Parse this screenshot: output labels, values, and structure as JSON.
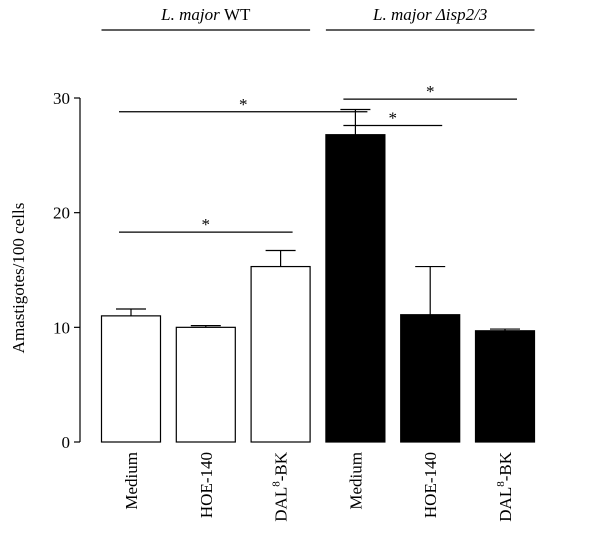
{
  "chart_data": {
    "type": "bar",
    "ylabel": "Amastigotes/100 cells",
    "ylim": [
      0,
      30
    ],
    "yticks": [
      0,
      10,
      20,
      30
    ],
    "grid": false,
    "categories": [
      {
        "main": "Medium",
        "sup": "",
        "suffix": ""
      },
      {
        "main": "HOE-140",
        "sup": "",
        "suffix": ""
      },
      {
        "main": "DAL",
        "sup": "8",
        "suffix": "-BK"
      },
      {
        "main": "Medium",
        "sup": "",
        "suffix": ""
      },
      {
        "main": "HOE-140",
        "sup": "",
        "suffix": ""
      },
      {
        "main": "DAL",
        "sup": "8",
        "suffix": "-BK"
      }
    ],
    "values": [
      11.0,
      10.0,
      15.3,
      26.8,
      11.1,
      9.7
    ],
    "errors": [
      0.6,
      0.15,
      1.4,
      2.2,
      4.2,
      0.15
    ],
    "fills": [
      "#ffffff",
      "#ffffff",
      "#ffffff",
      "#000000",
      "#000000",
      "#000000"
    ],
    "groups": [
      {
        "italic": "L. major",
        "rest": " WT",
        "bars": [
          0,
          2
        ]
      },
      {
        "italic": "L. major Δisp2/3",
        "rest": "",
        "bars": [
          3,
          5
        ]
      }
    ],
    "significance": [
      {
        "from": 0,
        "to": 3,
        "y": 28.8,
        "label": "*"
      },
      {
        "from": 3,
        "to": 4,
        "y": 27.6,
        "label": "*"
      },
      {
        "from": 3,
        "to": 5,
        "y": 29.9,
        "label": "*"
      },
      {
        "from": 0,
        "to": 2,
        "y": 18.3,
        "label": "*"
      }
    ]
  }
}
